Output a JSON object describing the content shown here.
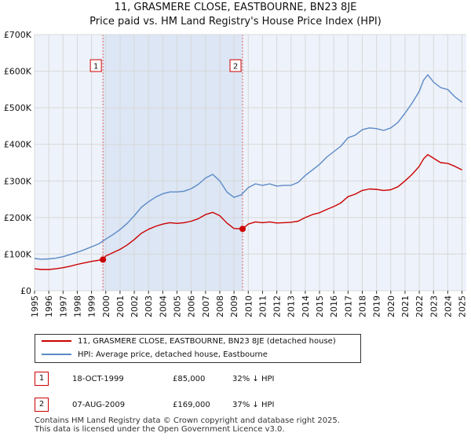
{
  "title_line1": "11, GRASMERE CLOSE, EASTBOURNE, BN23 8JE",
  "title_line2": "Price paid vs. HM Land Registry's House Price Index (HPI)",
  "colors": {
    "property": "#cc0000",
    "hpi": "#5b8ac6",
    "shade": "#dce6f5",
    "vline": "#e06060",
    "grid": "#d8d8d8",
    "bg": "#eef2fa"
  },
  "chart_data": {
    "type": "line",
    "title": "11, GRASMERE CLOSE, EASTBOURNE, BN23 8JE — Price paid vs. HM Land Registry's House Price Index (HPI)",
    "xlabel": "",
    "ylabel": "",
    "xlim": [
      1995,
      2025.3
    ],
    "ylim": [
      0,
      700000
    ],
    "y_ticks": [
      0,
      100000,
      200000,
      300000,
      400000,
      500000,
      600000,
      700000
    ],
    "y_tick_labels": [
      "£0",
      "£100K",
      "£200K",
      "£300K",
      "£400K",
      "£500K",
      "£600K",
      "£700K"
    ],
    "x_ticks": [
      1995,
      1996,
      1997,
      1998,
      1999,
      2000,
      2001,
      2002,
      2003,
      2004,
      2005,
      2006,
      2007,
      2008,
      2009,
      2010,
      2011,
      2012,
      2013,
      2014,
      2015,
      2016,
      2017,
      2018,
      2019,
      2020,
      2021,
      2022,
      2023,
      2024,
      2025
    ],
    "x_tick_labels": [
      "1995",
      "1996",
      "1997",
      "1998",
      "1999",
      "2000",
      "2001",
      "2002",
      "2003",
      "2004",
      "2005",
      "2006",
      "2007",
      "2008",
      "2009",
      "2010",
      "2011",
      "2012",
      "2013",
      "2014",
      "2015",
      "2016",
      "2017",
      "2018",
      "2019",
      "2020",
      "2021",
      "2022",
      "2023",
      "2024",
      "2025"
    ],
    "grid": true,
    "shaded_region": [
      1999.8,
      2009.6
    ],
    "series": [
      {
        "name": "11, GRASMERE CLOSE, EASTBOURNE, BN23 8JE (detached house)",
        "color": "#cc0000",
        "x": [
          1995,
          1995.5,
          1996,
          1996.5,
          1997,
          1997.5,
          1998,
          1998.5,
          1999,
          1999.8,
          2000,
          2000.5,
          2001,
          2001.5,
          2002,
          2002.5,
          2003,
          2003.5,
          2004,
          2004.5,
          2005,
          2005.5,
          2006,
          2006.5,
          2007,
          2007.5,
          2008,
          2008.5,
          2009,
          2009.6,
          2010,
          2010.5,
          2011,
          2011.5,
          2012,
          2012.5,
          2013,
          2013.5,
          2014,
          2014.5,
          2015,
          2015.5,
          2016,
          2016.5,
          2017,
          2017.5,
          2018,
          2018.5,
          2019,
          2019.5,
          2020,
          2020.5,
          2021,
          2021.5,
          2022,
          2022.3,
          2022.6,
          2023,
          2023.5,
          2024,
          2024.5,
          2025
        ],
        "values": [
          60000,
          58000,
          58000,
          60000,
          63000,
          67000,
          72000,
          76000,
          80000,
          85000,
          95000,
          104000,
          113000,
          125000,
          140000,
          157000,
          168000,
          176000,
          182000,
          186000,
          184000,
          186000,
          190000,
          197000,
          208000,
          214000,
          205000,
          185000,
          170000,
          169000,
          182000,
          188000,
          186000,
          188000,
          185000,
          186000,
          187000,
          190000,
          200000,
          208000,
          213000,
          222000,
          230000,
          240000,
          257000,
          264000,
          274000,
          278000,
          277000,
          274000,
          276000,
          284000,
          300000,
          318000,
          340000,
          360000,
          372000,
          362000,
          350000,
          348000,
          340000,
          330000
        ]
      },
      {
        "name": "HPI: Average price, detached house, Eastbourne",
        "color": "#5b8ac6",
        "x": [
          1995,
          1995.5,
          1996,
          1996.5,
          1997,
          1997.5,
          1998,
          1998.5,
          1999,
          1999.5,
          2000,
          2000.5,
          2001,
          2001.5,
          2002,
          2002.5,
          2003,
          2003.5,
          2004,
          2004.5,
          2005,
          2005.5,
          2006,
          2006.5,
          2007,
          2007.5,
          2008,
          2008.5,
          2009,
          2009.5,
          2010,
          2010.5,
          2011,
          2011.5,
          2012,
          2012.5,
          2013,
          2013.5,
          2014,
          2014.5,
          2015,
          2015.5,
          2016,
          2016.5,
          2017,
          2017.5,
          2018,
          2018.5,
          2019,
          2019.5,
          2020,
          2020.5,
          2021,
          2021.5,
          2022,
          2022.3,
          2022.6,
          2023,
          2023.5,
          2024,
          2024.5,
          2025
        ],
        "values": [
          88000,
          86000,
          87000,
          89000,
          93000,
          99000,
          105000,
          112000,
          120000,
          128000,
          141000,
          153000,
          167000,
          184000,
          205000,
          228000,
          243000,
          256000,
          265000,
          270000,
          270000,
          272000,
          279000,
          291000,
          308000,
          318000,
          300000,
          270000,
          255000,
          262000,
          282000,
          292000,
          288000,
          292000,
          286000,
          288000,
          288000,
          296000,
          315000,
          330000,
          345000,
          365000,
          380000,
          395000,
          418000,
          425000,
          440000,
          445000,
          443000,
          438000,
          445000,
          460000,
          485000,
          513000,
          545000,
          575000,
          590000,
          570000,
          555000,
          550000,
          530000,
          515000
        ]
      }
    ],
    "sales": [
      {
        "label": "1",
        "x": 1999.8,
        "value": 85000
      },
      {
        "label": "2",
        "x": 2009.6,
        "value": 169000
      }
    ]
  },
  "legend": {
    "property_label": "11, GRASMERE CLOSE, EASTBOURNE, BN23 8JE (detached house)",
    "hpi_label": "HPI: Average price, detached house, Eastbourne"
  },
  "transactions": [
    {
      "num": "1",
      "date": "18-OCT-1999",
      "price": "£85,000",
      "hpi": "32% ↓ HPI"
    },
    {
      "num": "2",
      "date": "07-AUG-2009",
      "price": "£169,000",
      "hpi": "37% ↓ HPI"
    }
  ],
  "footer": {
    "line1": "Contains HM Land Registry data © Crown copyright and database right 2025.",
    "line2": "This data is licensed under the Open Government Licence v3.0."
  }
}
